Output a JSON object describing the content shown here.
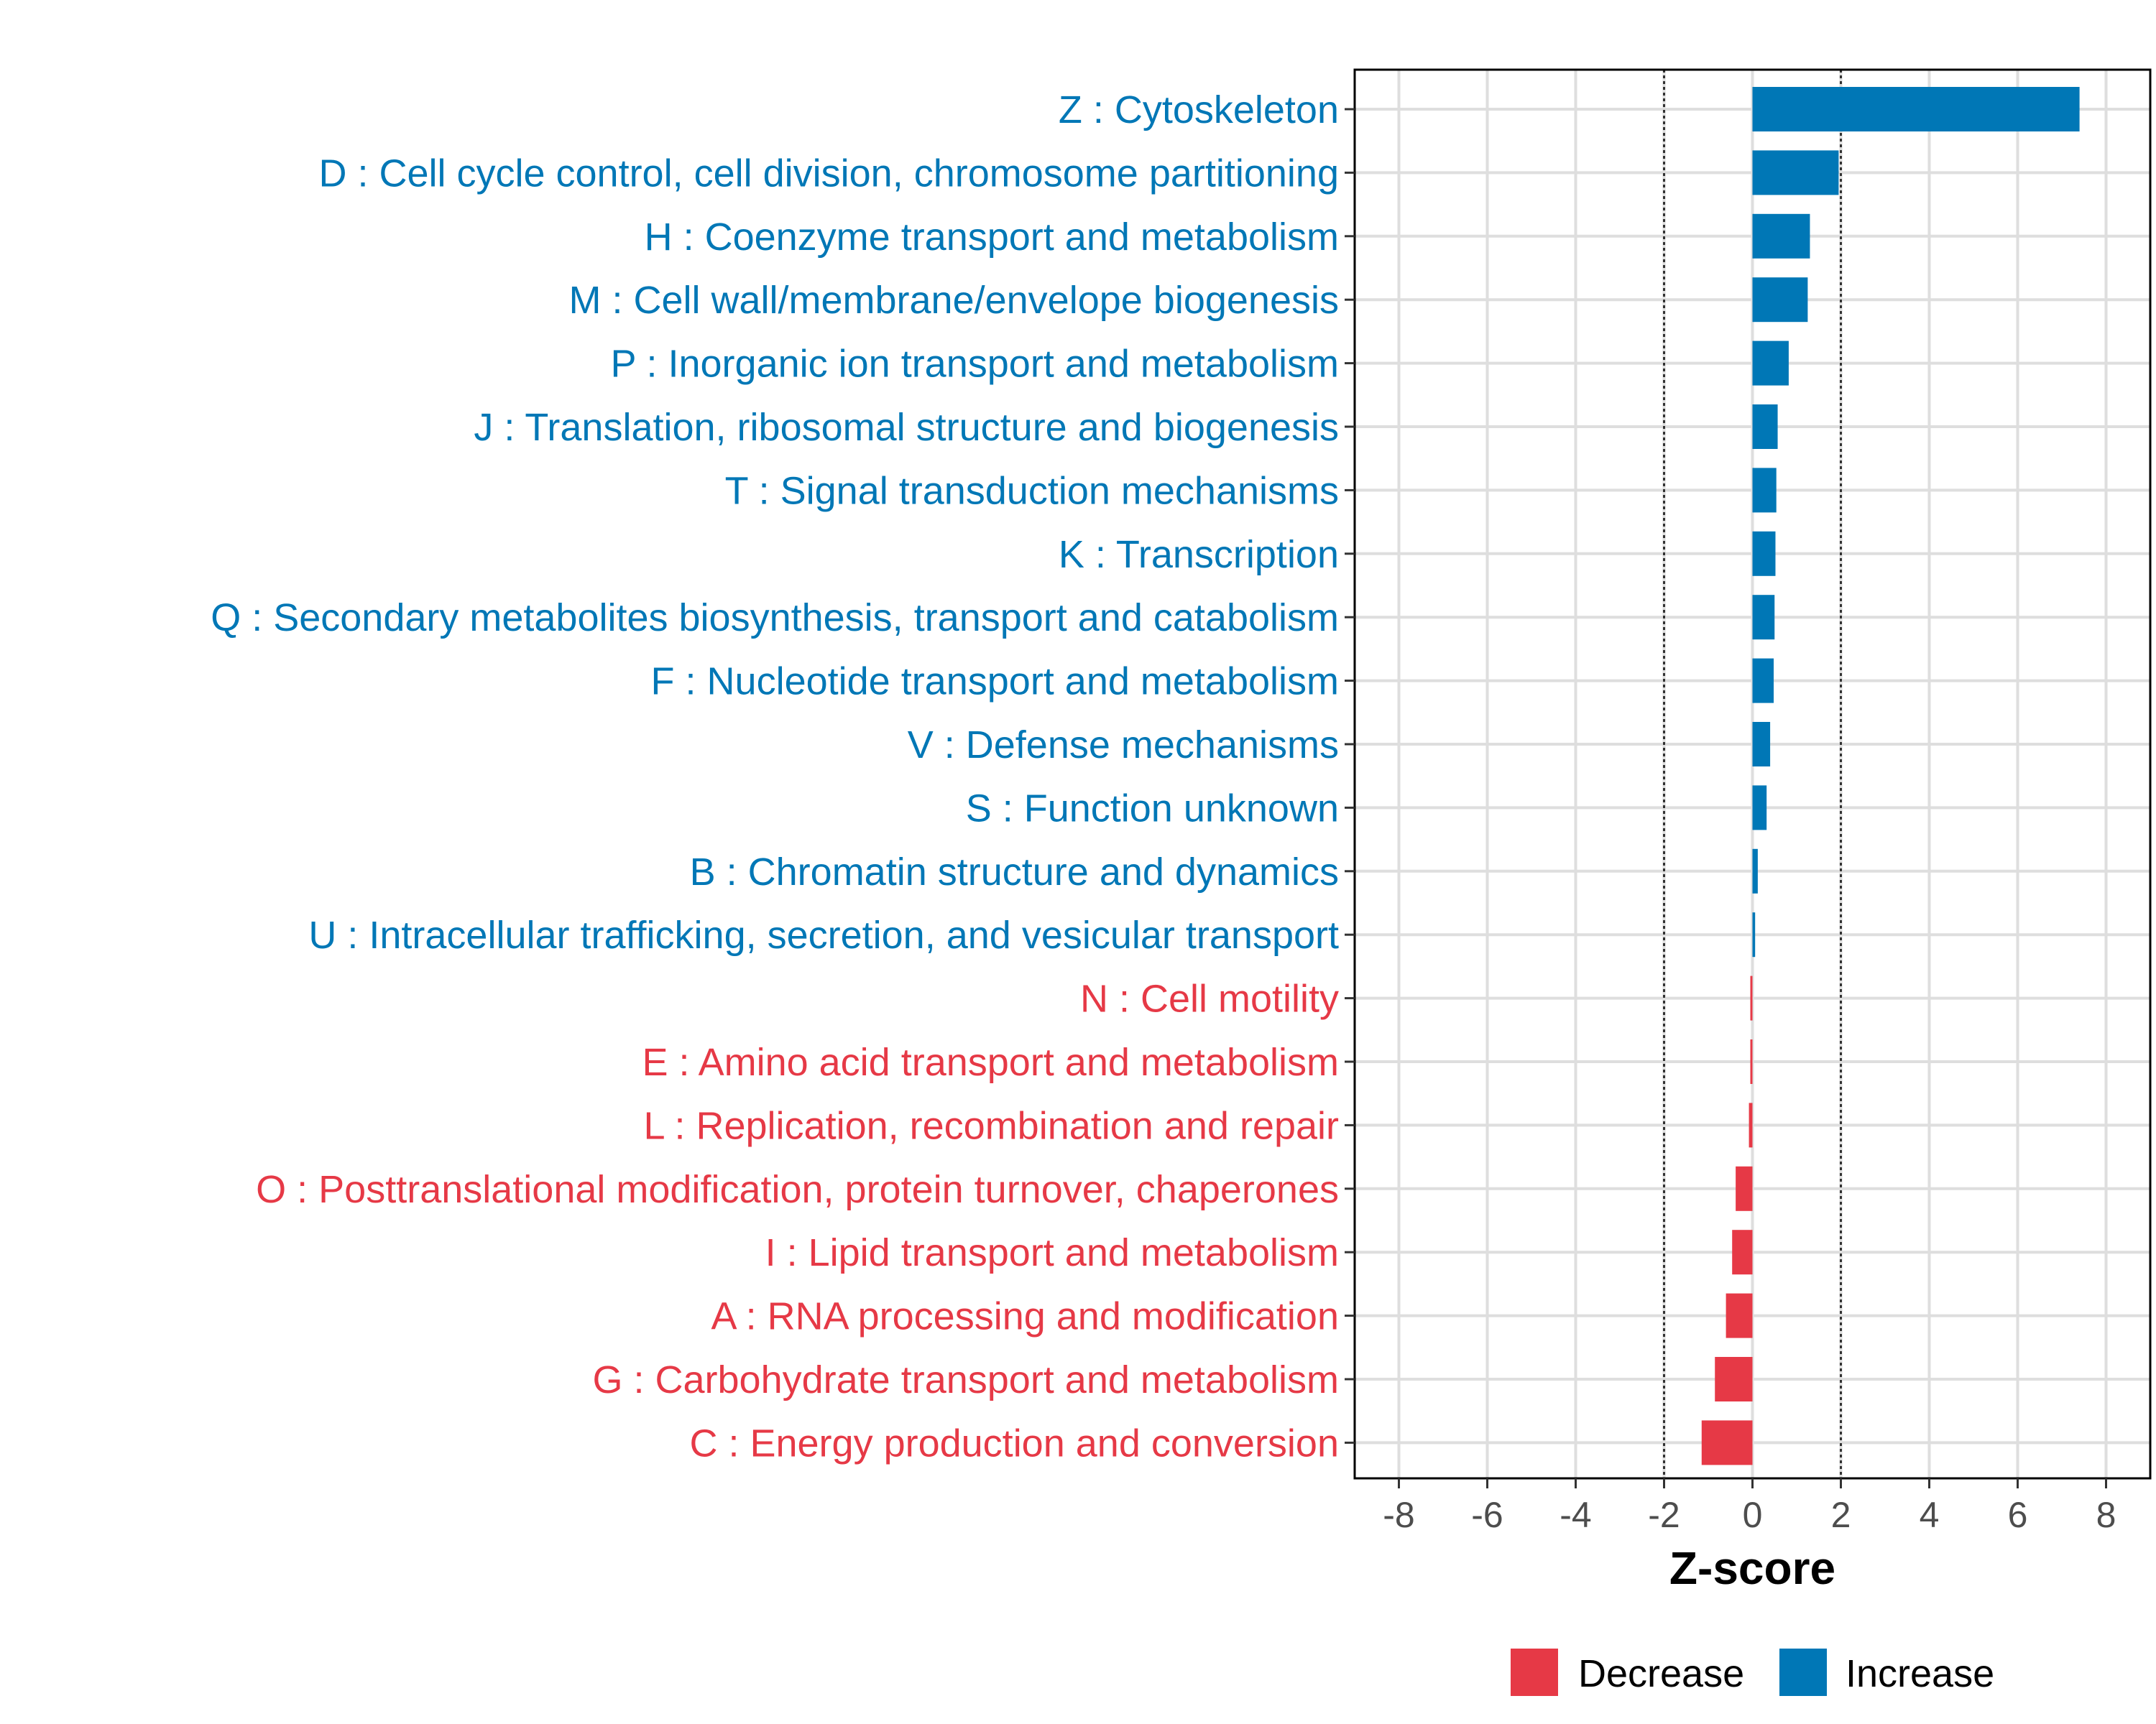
{
  "chart_data": {
    "type": "bar",
    "orientation": "horizontal",
    "title": "",
    "xlabel": "Z-score",
    "ylabel": "",
    "xlim": [
      -9,
      9
    ],
    "xticks": [
      -8,
      -6,
      -4,
      -2,
      0,
      2,
      4,
      6,
      8
    ],
    "xtick_labels": [
      "-8",
      "-6",
      "-4",
      "-2",
      "0",
      "2",
      "4",
      "6",
      "8"
    ],
    "thresholds": [
      -2,
      2
    ],
    "grid": true,
    "legend_position": "bottom",
    "categories": [
      "Z : Cytoskeleton",
      "D : Cell cycle control, cell division, chromosome partitioning",
      "H : Coenzyme transport and metabolism",
      "M : Cell wall/membrane/envelope biogenesis",
      "P : Inorganic ion transport and metabolism",
      "J : Translation, ribosomal structure and biogenesis",
      "T : Signal transduction mechanisms",
      "K : Transcription",
      "Q : Secondary metabolites biosynthesis, transport and catabolism",
      "F : Nucleotide transport and metabolism",
      "V : Defense mechanisms",
      "S : Function unknown",
      "B : Chromatin structure and dynamics",
      "U : Intracellular trafficking, secretion, and vesicular transport",
      "N : Cell motility",
      "E : Amino acid transport and metabolism",
      "L : Replication, recombination and repair",
      "O : Posttranslational modification, protein turnover, chaperones",
      "I : Lipid transport and metabolism",
      "A : RNA processing and modification",
      "G : Carbohydrate transport and metabolism",
      "C : Energy production and conversion"
    ],
    "values": [
      7.4,
      1.95,
      1.3,
      1.25,
      0.82,
      0.57,
      0.54,
      0.52,
      0.5,
      0.48,
      0.4,
      0.32,
      0.12,
      0.06,
      -0.02,
      -0.04,
      -0.08,
      -0.38,
      -0.46,
      -0.6,
      -0.85,
      -1.15
    ],
    "series": [
      {
        "name": "Decrease",
        "color": "#E63946"
      },
      {
        "name": "Increase",
        "color": "#0077B6"
      }
    ],
    "legend": {
      "decrease_label": "Decrease",
      "increase_label": "Increase"
    }
  }
}
